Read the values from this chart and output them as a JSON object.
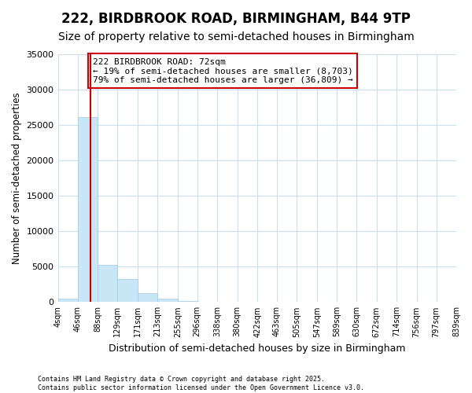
{
  "title": "222, BIRDBROOK ROAD, BIRMINGHAM, B44 9TP",
  "subtitle": "Size of property relative to semi-detached houses in Birmingham",
  "xlabel": "Distribution of semi-detached houses by size in Birmingham",
  "ylabel": "Number of semi-detached properties",
  "annotation_line1": "222 BIRDBROOK ROAD: 72sqm",
  "annotation_line2": "← 19% of semi-detached houses are smaller (8,703)",
  "annotation_line3": "79% of semi-detached houses are larger (36,809) →",
  "footer1": "Contains HM Land Registry data © Crown copyright and database right 2025.",
  "footer2": "Contains public sector information licensed under the Open Government Licence v3.0.",
  "bar_edges": [
    4,
    46,
    88,
    129,
    171,
    213,
    255,
    296,
    338,
    380,
    422,
    463,
    505,
    547,
    589,
    630,
    672,
    714,
    756,
    797,
    839
  ],
  "bar_heights": [
    500,
    26100,
    5200,
    3200,
    1300,
    500,
    200,
    50,
    0,
    0,
    0,
    0,
    0,
    0,
    0,
    0,
    0,
    0,
    0,
    0
  ],
  "bar_color": "#c8e6f5",
  "bar_edge_color": "#a0c8e8",
  "property_size": 72,
  "red_line_color": "#cc0000",
  "annotation_box_color": "#cc0000",
  "plot_bg_color": "#ffffff",
  "fig_bg_color": "#ffffff",
  "ylim": [
    0,
    35000
  ],
  "yticks": [
    0,
    5000,
    10000,
    15000,
    20000,
    25000,
    30000,
    35000
  ],
  "grid_color": "#c8dff0",
  "title_fontsize": 12,
  "subtitle_fontsize": 10,
  "annotation_fontsize": 8
}
